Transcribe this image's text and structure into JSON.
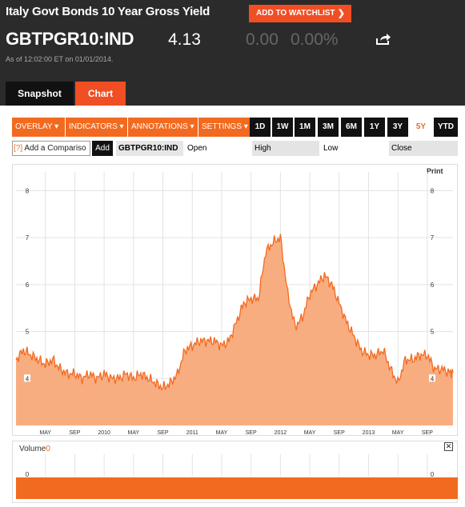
{
  "header": {
    "title": "Italy Govt Bonds 10 Year Gross Yield",
    "watchlist_label": "ADD TO WATCHLIST",
    "ticker": "GBTPGR10:IND",
    "price": "4.13",
    "change": "0.00",
    "change_pct": "0.00%",
    "as_of": "As of 12:02:00 ET on 01/01/2014."
  },
  "tabs": [
    {
      "label": "Snapshot"
    },
    {
      "label": "Chart"
    }
  ],
  "toolbar": {
    "menus": [
      "OVERLAY ▾",
      "INDICATORS ▾",
      "ANNOTATIONS ▾",
      "SETTINGS ▾"
    ],
    "ranges": [
      "1D",
      "1W",
      "1M",
      "3M",
      "6M",
      "1Y",
      "3Y",
      "5Y",
      "YTD"
    ],
    "active_range": "5Y"
  },
  "compare": {
    "input_prefix": "[?]",
    "input_value": "Add a Compariso",
    "add_label": "Add",
    "symbol": "GBTPGR10:IND",
    "open_label": "Open",
    "high_label": "High",
    "low_label": "Low",
    "close_label": "Close"
  },
  "chart": {
    "print_label": "Print",
    "volume_label": "Volume",
    "volume_value": "0",
    "close_icon": "close-icon",
    "accent_color": "#f26a20",
    "fill_color": "#f8ad80"
  },
  "chart_data": {
    "type": "area",
    "title": "",
    "xlabel": "",
    "ylabel": "",
    "ylim": [
      3,
      8.4
    ],
    "y_ticks": [
      "4",
      "5",
      "6",
      "7",
      "8"
    ],
    "x_tick_labels": [
      "MAY",
      "SEP",
      "2010",
      "MAY",
      "SEP",
      "2011",
      "MAY",
      "SEP",
      "2012",
      "MAY",
      "SEP",
      "2013",
      "MAY",
      "SEP"
    ],
    "x_tick_dates": [
      "2009-05",
      "2009-09",
      "2010-01",
      "2010-05",
      "2010-09",
      "2011-01",
      "2011-05",
      "2011-09",
      "2012-01",
      "2012-05",
      "2012-09",
      "2013-01",
      "2013-05",
      "2013-09"
    ],
    "series": [
      {
        "x": [
          "2009-01",
          "2009-02",
          "2009-03",
          "2009-04",
          "2009-05",
          "2009-06",
          "2009-07",
          "2009-08",
          "2009-09",
          "2009-10",
          "2009-11",
          "2009-12",
          "2010-01",
          "2010-02",
          "2010-03",
          "2010-04",
          "2010-05",
          "2010-06",
          "2010-07",
          "2010-08",
          "2010-09",
          "2010-10",
          "2010-11",
          "2010-12",
          "2011-01",
          "2011-02",
          "2011-03",
          "2011-04",
          "2011-05",
          "2011-06",
          "2011-07",
          "2011-08",
          "2011-09",
          "2011-10",
          "2011-11",
          "2011-12",
          "2012-01",
          "2012-02",
          "2012-03",
          "2012-04",
          "2012-05",
          "2012-06",
          "2012-07",
          "2012-08",
          "2012-09",
          "2012-10",
          "2012-11",
          "2012-12",
          "2013-01",
          "2013-02",
          "2013-03",
          "2013-04",
          "2013-05",
          "2013-06",
          "2013-07",
          "2013-08",
          "2013-09",
          "2013-10",
          "2013-11",
          "2013-12"
        ],
        "values": [
          4.4,
          4.6,
          4.5,
          4.4,
          4.3,
          4.4,
          4.2,
          4.1,
          4.1,
          4.0,
          4.1,
          4.0,
          4.1,
          4.0,
          4.0,
          4.1,
          4.0,
          4.1,
          4.0,
          3.9,
          3.8,
          3.9,
          4.1,
          4.6,
          4.7,
          4.8,
          4.8,
          4.8,
          4.7,
          4.8,
          5.2,
          5.6,
          5.7,
          5.7,
          6.7,
          6.9,
          7.0,
          5.8,
          5.1,
          5.3,
          5.8,
          6.0,
          6.2,
          6.0,
          5.6,
          5.2,
          4.9,
          4.6,
          4.5,
          4.5,
          4.6,
          4.2,
          3.9,
          4.4,
          4.4,
          4.5,
          4.5,
          4.2,
          4.2,
          4.13
        ]
      }
    ],
    "grid": true,
    "legend": "none"
  },
  "volume_data": {
    "type": "bar",
    "ylabel_tick": "0"
  }
}
